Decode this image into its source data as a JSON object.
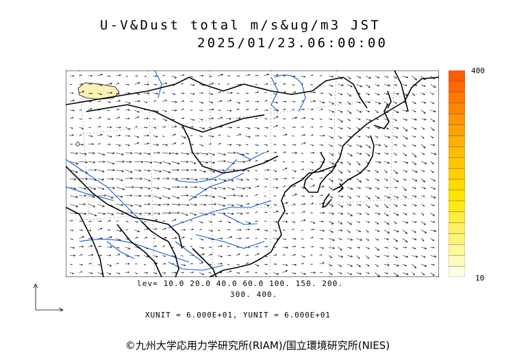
{
  "title": {
    "line1": "U-V&Dust total m/s&ug/m3 JST",
    "line2": "2025/01/23.06:00:00"
  },
  "legend": {
    "levels_line1": "lev= 10.0 20.0 40.0 60.0 100. 150. 200.",
    "levels_line2": "300. 400.",
    "units_line": "XUNIT = 6.000E+01, YUNIT = 6.000E+01"
  },
  "colorbar": {
    "max_label": "400",
    "min_label": "10",
    "colors": [
      "#ffffe8",
      "#fffbc0",
      "#fff79a",
      "#fff27a",
      "#fff060",
      "#ffec3c",
      "#ffe81a",
      "#ffe400",
      "#ffdb00",
      "#ffd100",
      "#ffc700",
      "#ffbc00",
      "#ffb000",
      "#ffa300",
      "#ff9500",
      "#ff8700",
      "#ff7800",
      "#ff6a00",
      "#ff5c00"
    ]
  },
  "map": {
    "coast_color": "#000000",
    "river_color": "#0a5cd6",
    "dust_fill": "#fbf2b4",
    "dust_level": 10
  },
  "copyright": "©九州大学応用力学研究所(RIAM)/国立環境研究所(NIES)"
}
